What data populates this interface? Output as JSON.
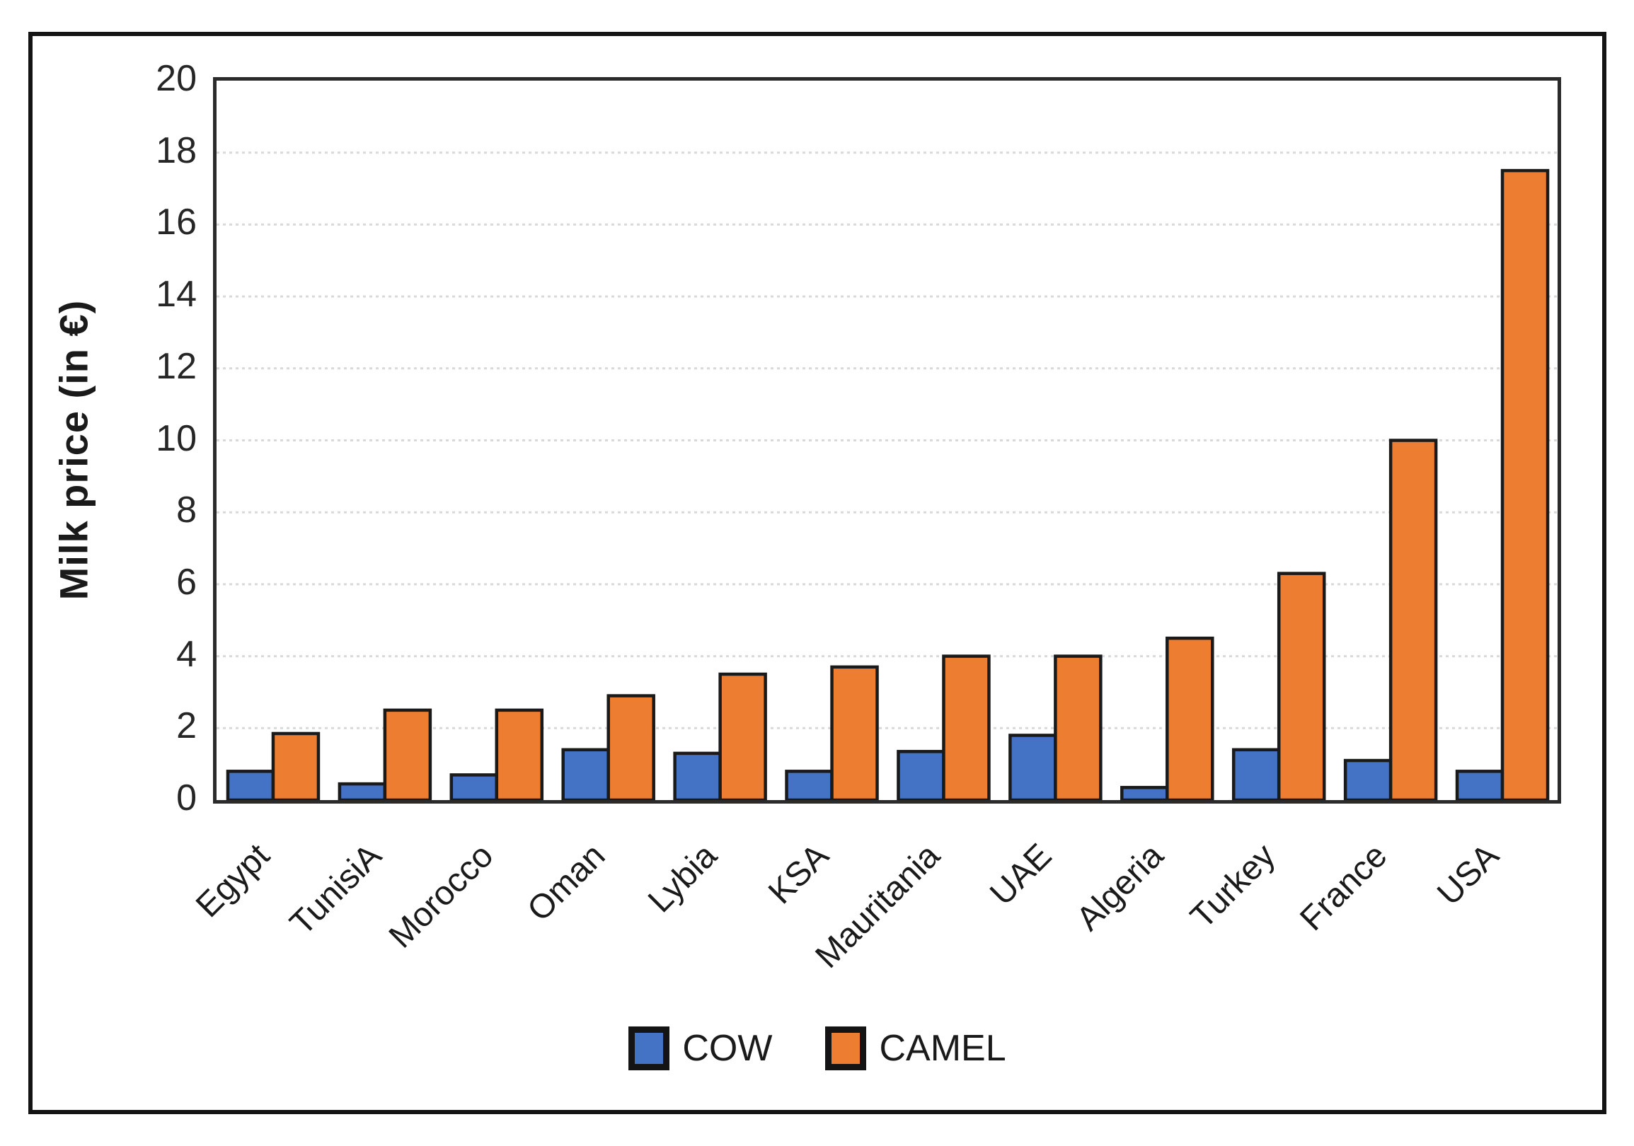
{
  "chart_data": {
    "type": "bar",
    "title": "",
    "xlabel": "",
    "ylabel": "Milk price (in €)",
    "ylim": [
      0,
      20
    ],
    "ytick_step": 2,
    "grid": true,
    "legend_position": "bottom-center",
    "categories": [
      "Egypt",
      "TunisiA",
      "Morocco",
      "Oman",
      "Lybia",
      "KSA",
      "Mauritania",
      "UAE",
      "Algeria",
      "Turkey",
      "France",
      "USA"
    ],
    "series": [
      {
        "name": "COW",
        "color": "#4472C4",
        "values": [
          0.8,
          0.45,
          0.7,
          1.4,
          1.3,
          0.8,
          1.35,
          1.8,
          0.35,
          1.4,
          1.1,
          0.8
        ]
      },
      {
        "name": "CAMEL",
        "color": "#ED7D31",
        "values": [
          1.85,
          2.5,
          2.5,
          2.9,
          3.5,
          3.7,
          4.0,
          4.0,
          4.5,
          6.3,
          10.0,
          17.5
        ]
      }
    ],
    "colors": {
      "bar_border": "#1a1a1a",
      "gridline": "#d9d9d9",
      "axis_border": "#2b2b2b",
      "text": "#1a1a1a"
    }
  }
}
